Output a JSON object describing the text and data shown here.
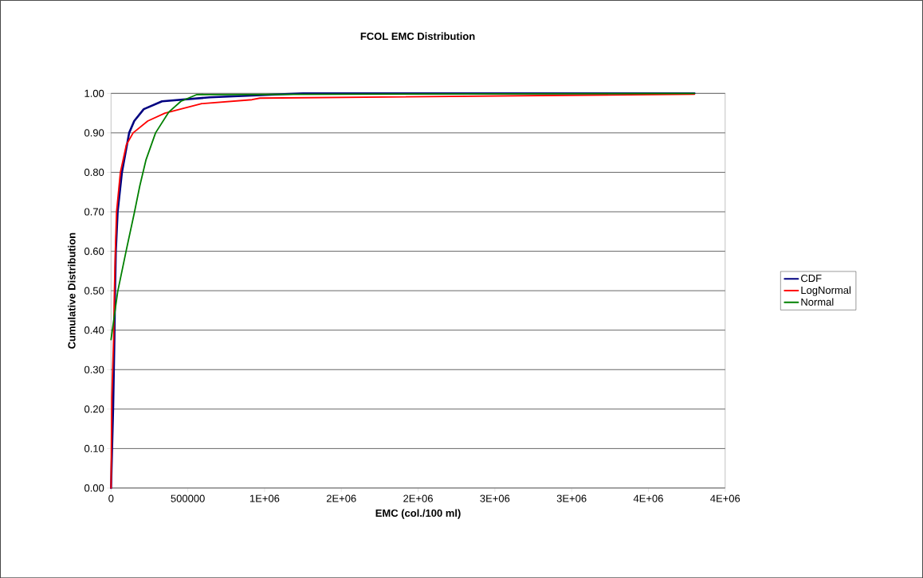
{
  "chart_data": {
    "type": "line",
    "title": "FCOL EMC Distribution",
    "xlabel": "EMC (col./100 ml)",
    "ylabel": "Cumulative Distribution",
    "xlim": [
      0,
      4000000
    ],
    "ylim": [
      0,
      1
    ],
    "xticks": [
      0,
      500000,
      {
        "value": 1000000,
        "label": "1E+06"
      },
      {
        "value": 1500000,
        "label": "2E+06"
      },
      {
        "value": 2000000,
        "label": "2E+06"
      },
      {
        "value": 2500000,
        "label": "3E+06"
      },
      {
        "value": 3000000,
        "label": "3E+06"
      },
      {
        "value": 3500000,
        "label": "4E+06"
      },
      {
        "value": 4000000,
        "label": "4E+06"
      }
    ],
    "yticks": [
      {
        "value": 0,
        "label": "0.00"
      },
      {
        "value": 0.1,
        "label": "0.10"
      },
      {
        "value": 0.2,
        "label": "0.20"
      },
      {
        "value": 0.3,
        "label": "0.30"
      },
      {
        "value": 0.4,
        "label": "0.40"
      },
      {
        "value": 0.5,
        "label": "0.50"
      },
      {
        "value": 0.6,
        "label": "0.60"
      },
      {
        "value": 0.7,
        "label": "0.70"
      },
      {
        "value": 0.8,
        "label": "0.80"
      },
      {
        "value": 0.9,
        "label": "0.90"
      },
      {
        "value": 1,
        "label": "1.00"
      }
    ],
    "grid": "y",
    "legend": "right",
    "marker": "none",
    "line_style": "solid",
    "series": [
      {
        "name": "CDF",
        "color": "#000080",
        "x": [
          0,
          14000,
          22000,
          26000,
          31000,
          43000,
          71000,
          118000,
          151000,
          213000,
          332000,
          643000,
          1250000,
          3800000
        ],
        "values": [
          0,
          0.21,
          0.38,
          0.5,
          0.6,
          0.7,
          0.8,
          0.9,
          0.93,
          0.96,
          0.98,
          0.99,
          1.0,
          1.0
        ]
      },
      {
        "name": "LogNormal",
        "color": "#ff0000",
        "x": [
          0,
          5000,
          17000,
          22000,
          28000,
          36000,
          61000,
          100000,
          144000,
          239000,
          351000,
          591000,
          918000,
          970000,
          3800000
        ],
        "values": [
          0,
          0.23,
          0.38,
          0.5,
          0.6,
          0.7,
          0.8,
          0.87,
          0.9,
          0.93,
          0.95,
          0.974,
          0.984,
          0.988,
          0.998
        ]
      },
      {
        "name": "Normal",
        "color": "#008000",
        "x": [
          0,
          43000,
          100000,
          152000,
          187000,
          228000,
          290000,
          377000,
          455000,
          559000,
          3800000
        ],
        "values": [
          0.376,
          0.497,
          0.604,
          0.698,
          0.765,
          0.832,
          0.9,
          0.953,
          0.98,
          0.997,
          1.0
        ]
      }
    ]
  }
}
